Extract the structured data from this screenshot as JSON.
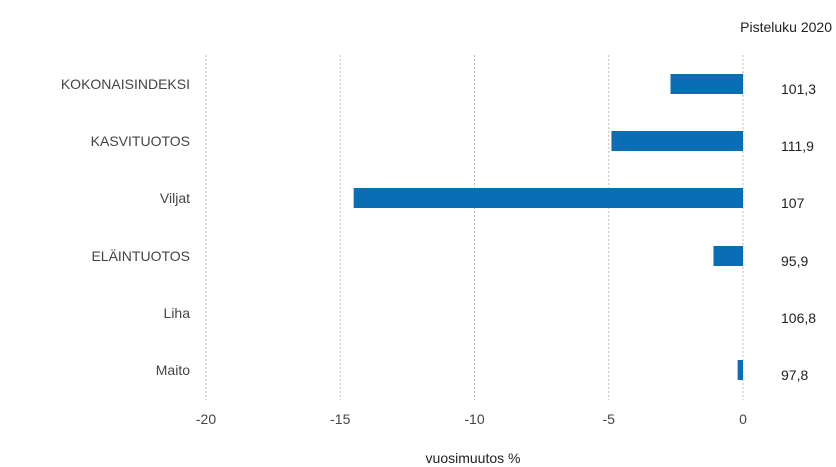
{
  "chart_data": {
    "type": "bar",
    "orientation": "horizontal",
    "categories": [
      "KOKONAISINDEKSI",
      "KASVITUOTOS",
      "Viljat",
      "ELÄINTUOTOS",
      "Liha",
      "Maito"
    ],
    "values": [
      -2.7,
      -4.9,
      -14.5,
      -1.1,
      0.0,
      -0.2
    ],
    "score_header": "Pisteluku 2020",
    "score_values": [
      "101,3",
      "111,9",
      "107",
      "95,9",
      "106,8",
      "97,8"
    ],
    "xlabel": "vuosimuutos %",
    "xlim": [
      -20,
      0
    ],
    "xticks": [
      -20,
      -15,
      -10,
      -5,
      0
    ],
    "xtick_labels": [
      "-20",
      "-15",
      "-10",
      "-5",
      "0"
    ],
    "grid": "vertical dashed",
    "bar_color": "#0a6eb4"
  }
}
